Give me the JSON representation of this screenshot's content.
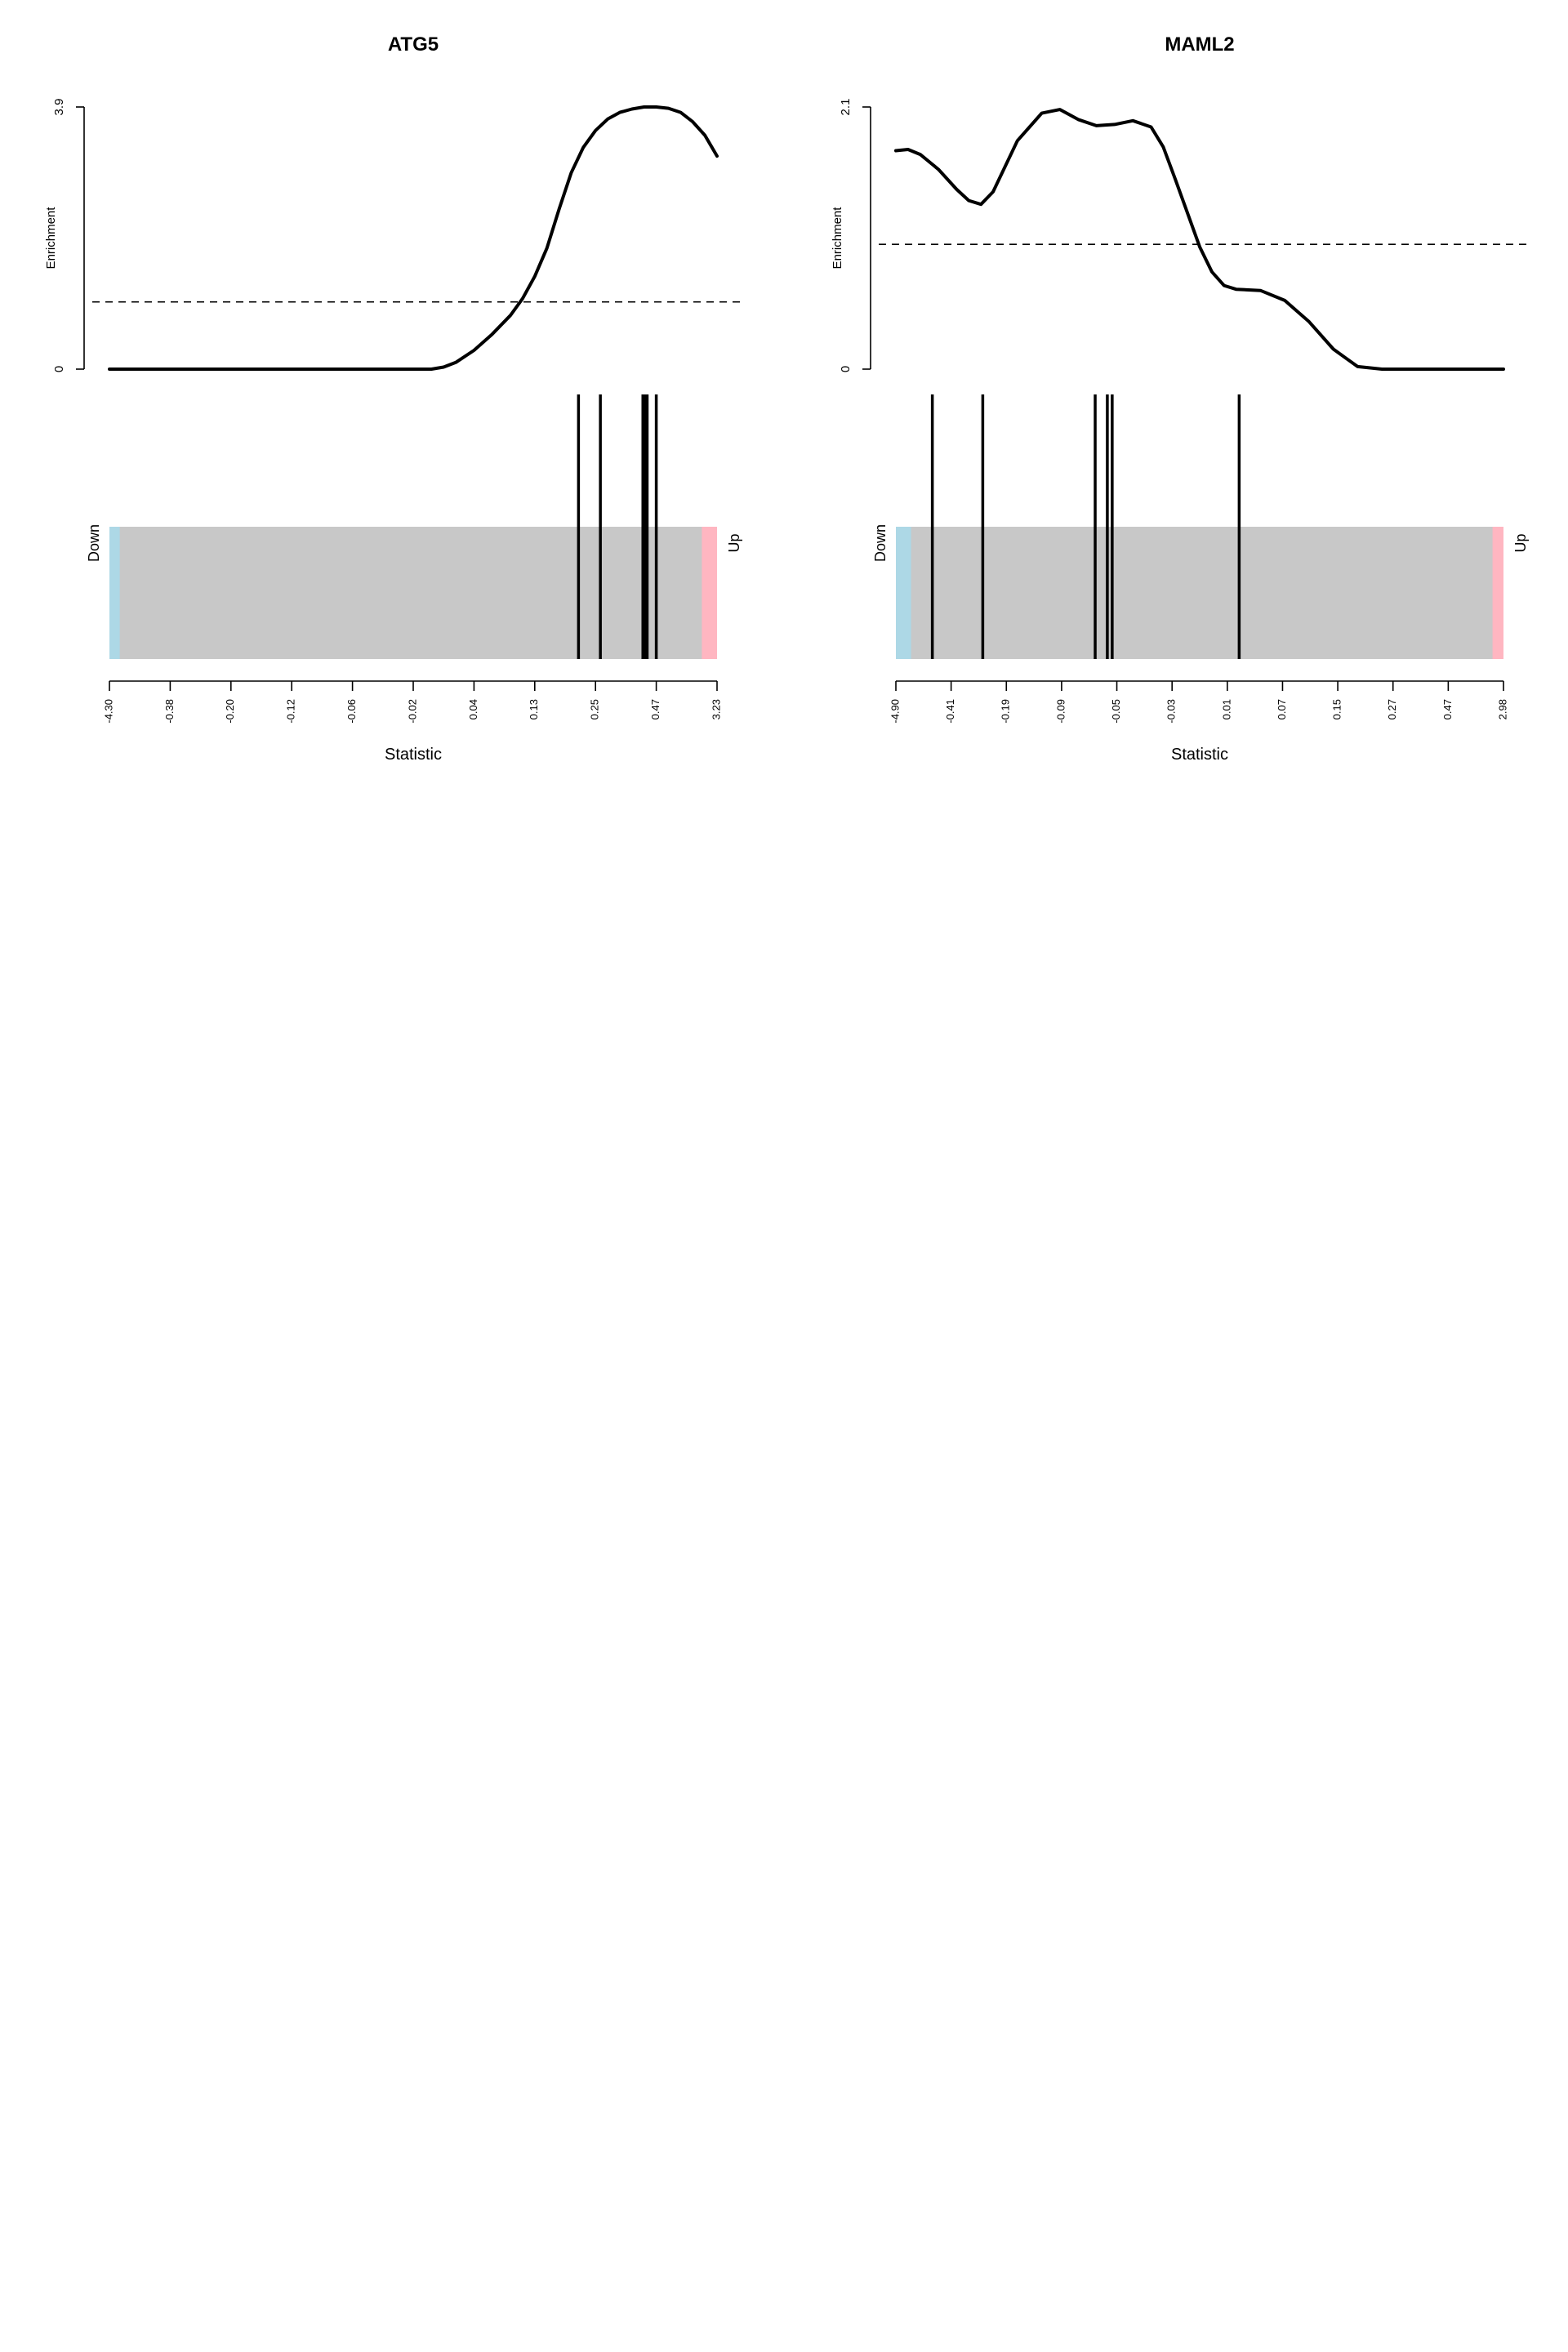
{
  "chart_data": [
    {
      "type": "barcode",
      "title": "ATG5",
      "enrichment": {
        "ylabel": "Enrichment",
        "ylim": [
          0,
          3.9
        ],
        "yticks": [
          "0",
          "3.9"
        ],
        "reference_line": 1.0,
        "curve_x": [
          0,
          0.05,
          0.1,
          0.2,
          0.3,
          0.4,
          0.5,
          0.53,
          0.55,
          0.57,
          0.6,
          0.63,
          0.66,
          0.68,
          0.7,
          0.72,
          0.74,
          0.76,
          0.78,
          0.8,
          0.82,
          0.84,
          0.86,
          0.88,
          0.9,
          0.92,
          0.94,
          0.96,
          0.98,
          1.0
        ],
        "curve_y": [
          0,
          0,
          0,
          0,
          0,
          0,
          0,
          0,
          0.03,
          0.1,
          0.28,
          0.52,
          0.8,
          1.05,
          1.38,
          1.8,
          2.38,
          2.92,
          3.3,
          3.55,
          3.72,
          3.82,
          3.87,
          3.9,
          3.9,
          3.88,
          3.82,
          3.68,
          3.48,
          3.17
        ]
      },
      "barcode": {
        "down_label": "Down",
        "up_label": "Up",
        "down_color": "#ADD8E6",
        "up_color": "#FFB6C1",
        "bar_color": "#C8C8C8",
        "down_fraction": 0.017,
        "up_fraction": 0.025,
        "hit_positions": [
          0.772,
          0.808,
          0.878,
          0.882,
          0.885,
          0.9
        ]
      },
      "xlabel": "Statistic",
      "xticks": [
        "-4.30",
        "-0.38",
        "-0.20",
        "-0.12",
        "-0.06",
        "-0.02",
        "0.04",
        "0.13",
        "0.25",
        "0.47",
        "3.23"
      ]
    },
    {
      "type": "barcode",
      "title": "MAML2",
      "enrichment": {
        "ylabel": "Enrichment",
        "ylim": [
          0,
          2.1
        ],
        "yticks": [
          "0",
          "2.1"
        ],
        "reference_line": 1.0,
        "curve_x": [
          0,
          0.02,
          0.04,
          0.07,
          0.1,
          0.12,
          0.14,
          0.16,
          0.2,
          0.24,
          0.27,
          0.3,
          0.33,
          0.36,
          0.39,
          0.42,
          0.44,
          0.46,
          0.48,
          0.5,
          0.52,
          0.54,
          0.56,
          0.6,
          0.64,
          0.68,
          0.72,
          0.76,
          0.8,
          0.9,
          1.0
        ],
        "curve_y": [
          1.75,
          1.76,
          1.72,
          1.6,
          1.44,
          1.35,
          1.32,
          1.42,
          1.83,
          2.05,
          2.08,
          2.0,
          1.95,
          1.96,
          1.99,
          1.94,
          1.78,
          1.52,
          1.25,
          0.98,
          0.78,
          0.67,
          0.64,
          0.63,
          0.55,
          0.38,
          0.16,
          0.02,
          0,
          0,
          0
        ]
      },
      "barcode": {
        "down_label": "Down",
        "up_label": "Up",
        "down_color": "#ADD8E6",
        "up_color": "#FFB6C1",
        "bar_color": "#C8C8C8",
        "down_fraction": 0.025,
        "up_fraction": 0.018,
        "hit_positions": [
          0.06,
          0.143,
          0.328,
          0.348,
          0.356,
          0.565
        ]
      },
      "xlabel": "Statistic",
      "xticks": [
        "-4.90",
        "-0.41",
        "-0.19",
        "-0.09",
        "-0.05",
        "-0.03",
        "0.01",
        "0.07",
        "0.15",
        "0.27",
        "0.47",
        "2.98"
      ]
    }
  ]
}
